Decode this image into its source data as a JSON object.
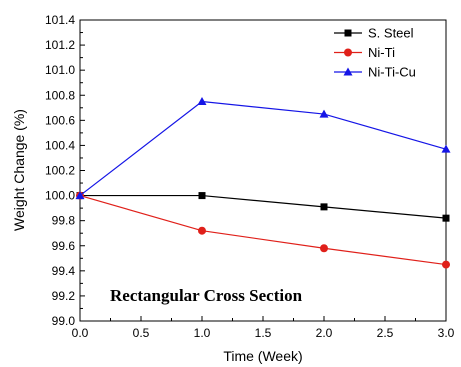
{
  "chart_data": {
    "type": "line",
    "title": "",
    "xlabel": "Time (Week)",
    "ylabel": "Weight Change (%)",
    "xlim": [
      0.0,
      3.0
    ],
    "ylim": [
      99.0,
      101.4
    ],
    "x_ticks": [
      "0.0",
      "0.5",
      "1.0",
      "1.5",
      "2.0",
      "2.5",
      "3.0"
    ],
    "y_ticks": [
      "99.0",
      "99.2",
      "99.4",
      "99.6",
      "99.8",
      "100.0",
      "100.2",
      "100.4",
      "100.6",
      "100.8",
      "101.0",
      "101.2",
      "101.4"
    ],
    "grid": false,
    "legend_position": "top-right",
    "annotation": "Rectangular Cross Section",
    "x": [
      0,
      1,
      2,
      3
    ],
    "series": [
      {
        "name": "S. Steel",
        "values": [
          100.0,
          100.0,
          99.91,
          99.82
        ],
        "color": "#000000",
        "marker": "square"
      },
      {
        "name": "Ni-Ti",
        "values": [
          100.0,
          99.72,
          99.58,
          99.45
        ],
        "color": "#e0201a",
        "marker": "circle"
      },
      {
        "name": "Ni-Ti-Cu",
        "values": [
          100.0,
          100.75,
          100.65,
          100.37
        ],
        "color": "#1515e6",
        "marker": "triangle"
      }
    ]
  }
}
